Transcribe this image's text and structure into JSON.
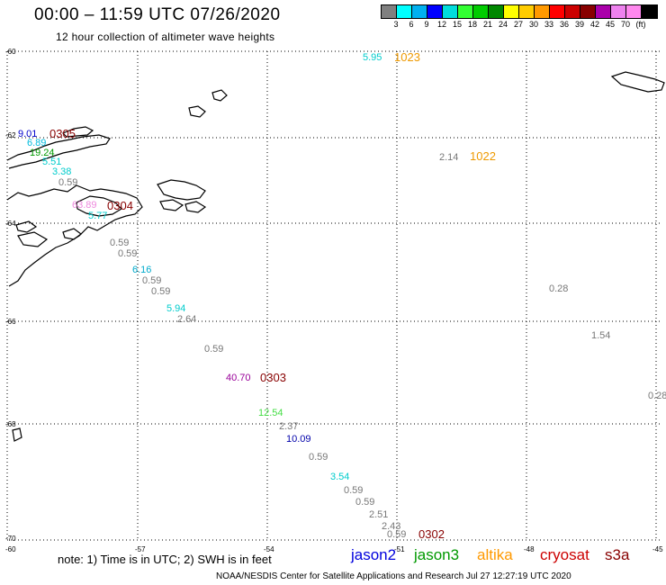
{
  "header": {
    "title": "00:00 – 11:59 UTC 07/26/2020",
    "subtitle": "12 hour collection of altimeter wave heights"
  },
  "colorbar": {
    "colors": [
      "#808080",
      "#00ffff",
      "#00b0f0",
      "#0000ff",
      "#00dcdc",
      "#33ff33",
      "#00cc00",
      "#008800",
      "#ffff00",
      "#ffcc00",
      "#ff9900",
      "#ff0000",
      "#cc0000",
      "#880000",
      "#aa00aa",
      "#ee82ee",
      "#ff88ee",
      "#000000"
    ],
    "labels": [
      "3",
      "6",
      "9",
      "12",
      "15",
      "18",
      "21",
      "24",
      "27",
      "30",
      "33",
      "36",
      "39",
      "42",
      "45",
      "70",
      "(ft)"
    ]
  },
  "axes": {
    "lat_labels": [
      "-60",
      "-62",
      "-64",
      "-66",
      "-68",
      "-70"
    ],
    "lon_labels": [
      "-60",
      "-57",
      "-54",
      "-51",
      "-48",
      "-45"
    ]
  },
  "observations": [
    {
      "text": "5.95",
      "color": "#00cccc"
    },
    {
      "text": "9.01",
      "color": "#0000cc"
    },
    {
      "text": "6.89",
      "color": "#00bbdd"
    },
    {
      "text": "19.24",
      "color": "#009900"
    },
    {
      "text": "5.51",
      "color": "#00cccc"
    },
    {
      "text": "3.38",
      "color": "#00cccc"
    },
    {
      "text": "0.59",
      "color": "#777777"
    },
    {
      "text": "63.89",
      "color": "#ee88dd"
    },
    {
      "text": "5.77",
      "color": "#00cccc"
    },
    {
      "text": "0.59",
      "color": "#777777"
    },
    {
      "text": "0.59",
      "color": "#777777"
    },
    {
      "text": "6.16",
      "color": "#00aacc"
    },
    {
      "text": "0.59",
      "color": "#777777"
    },
    {
      "text": "0.59",
      "color": "#777777"
    },
    {
      "text": "5.94",
      "color": "#00cccc"
    },
    {
      "text": "2.64",
      "color": "#777777"
    },
    {
      "text": "0.59",
      "color": "#777777"
    },
    {
      "text": "40.70",
      "color": "#990099"
    },
    {
      "text": "12.54",
      "color": "#44dd44"
    },
    {
      "text": "2.37",
      "color": "#777777"
    },
    {
      "text": "10.09",
      "color": "#0000aa"
    },
    {
      "text": "0.59",
      "color": "#777777"
    },
    {
      "text": "3.54",
      "color": "#00cccc"
    },
    {
      "text": "0.59",
      "color": "#777777"
    },
    {
      "text": "0.59",
      "color": "#777777"
    },
    {
      "text": "2.51",
      "color": "#777777"
    },
    {
      "text": "2.43",
      "color": "#777777"
    },
    {
      "text": "0.59",
      "color": "#777777"
    },
    {
      "text": "2.14",
      "color": "#777777"
    },
    {
      "text": "0.28",
      "color": "#777777"
    },
    {
      "text": "1.54",
      "color": "#777777"
    },
    {
      "text": "0.28",
      "color": "#777777"
    }
  ],
  "time_stamps": [
    {
      "text": "1023",
      "color": "#ee9900"
    },
    {
      "text": "0305",
      "color": "#880000"
    },
    {
      "text": "0304",
      "color": "#880000"
    },
    {
      "text": "1022",
      "color": "#ee9900"
    },
    {
      "text": "0303",
      "color": "#880000"
    },
    {
      "text": "0302",
      "color": "#880000"
    }
  ],
  "note": "note: 1) Time is in UTC; 2) SWH is in feet",
  "legend": [
    {
      "text": "jason2",
      "color": "#0000dd"
    },
    {
      "text": "jason3",
      "color": "#009900"
    },
    {
      "text": "altika",
      "color": "#ff9900"
    },
    {
      "text": "cryosat",
      "color": "#cc0000"
    },
    {
      "text": "s3a",
      "color": "#880000"
    }
  ],
  "credit": "NOAA/NESDIS Center for Satellite Applications and Research    Jul 27 12:27:19 UTC 2020"
}
